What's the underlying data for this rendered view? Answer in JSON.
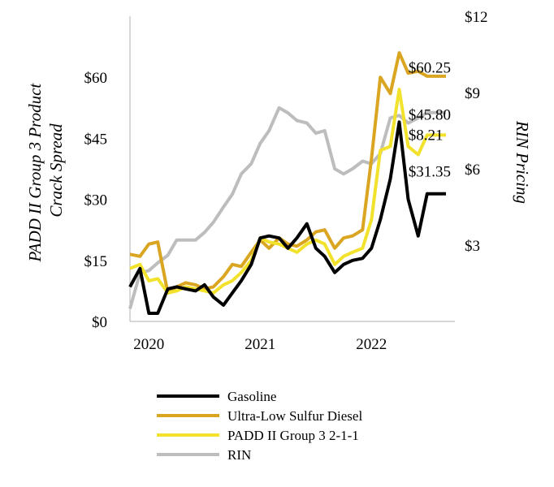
{
  "chart_data": {
    "type": "line",
    "title": "",
    "xlabel": "",
    "ylabel": "PADD II Group 3 Product Crack Spread",
    "y2label": "RIN Pricing",
    "ylim": [
      0,
      75
    ],
    "y2lim": [
      0,
      12
    ],
    "xlim": [
      2019.83,
      2022.75
    ],
    "yticks": [
      0,
      15,
      30,
      45,
      60
    ],
    "ytick_labels": [
      "$0",
      "$15",
      "$30",
      "$45",
      "$60"
    ],
    "y2ticks": [
      3,
      6,
      9,
      12
    ],
    "y2tick_labels": [
      "$3",
      "$6",
      "$9",
      "$12"
    ],
    "xticks": [
      2020,
      2021,
      2022
    ],
    "xtick_labels": [
      "2020",
      "2021",
      "2022"
    ],
    "series": [
      {
        "name": "Gasoline",
        "axis": "left",
        "color": "#000000",
        "x": [
          2019.83,
          2019.92,
          2020.0,
          2020.08,
          2020.17,
          2020.25,
          2020.33,
          2020.42,
          2020.5,
          2020.58,
          2020.67,
          2020.75,
          2020.83,
          2020.92,
          2021.0,
          2021.08,
          2021.17,
          2021.25,
          2021.33,
          2021.42,
          2021.5,
          2021.58,
          2021.67,
          2021.75,
          2021.83,
          2021.92,
          2022.0,
          2022.08,
          2022.17,
          2022.25,
          2022.33,
          2022.42,
          2022.5,
          2022.58,
          2022.67
        ],
        "values": [
          8.5,
          13,
          2,
          2,
          8,
          8.5,
          8,
          7.5,
          9,
          6,
          4,
          7,
          10,
          14,
          20.5,
          21,
          20.5,
          18,
          20.5,
          24,
          18,
          16,
          12,
          14,
          15,
          15.5,
          18,
          25,
          35,
          49,
          30,
          21,
          31.35,
          31.35,
          31.35
        ]
      },
      {
        "name": "Ultra-Low Sulfur Diesel",
        "axis": "left",
        "color": "#DAA520",
        "x": [
          2019.83,
          2019.92,
          2020.0,
          2020.08,
          2020.17,
          2020.25,
          2020.33,
          2020.42,
          2020.5,
          2020.58,
          2020.67,
          2020.75,
          2020.83,
          2020.92,
          2021.0,
          2021.08,
          2021.17,
          2021.25,
          2021.33,
          2021.42,
          2021.5,
          2021.58,
          2021.67,
          2021.75,
          2021.83,
          2021.92,
          2022.0,
          2022.08,
          2022.17,
          2022.25,
          2022.33,
          2022.42,
          2022.5,
          2022.58,
          2022.67
        ],
        "values": [
          16.5,
          16,
          19,
          19.5,
          7,
          8.5,
          9.5,
          9,
          8,
          8.5,
          11,
          14,
          13.5,
          17,
          20,
          18,
          20.5,
          19,
          18.5,
          20,
          22,
          22.5,
          18,
          20.5,
          21,
          22.5,
          40,
          60,
          56,
          66,
          61,
          61.5,
          60.25,
          60.25,
          60.25
        ]
      },
      {
        "name": "PADD II Group 3 2-1-1",
        "axis": "left",
        "color": "#F2E22B",
        "x": [
          2019.83,
          2019.92,
          2020.0,
          2020.08,
          2020.17,
          2020.25,
          2020.33,
          2020.42,
          2020.5,
          2020.58,
          2020.67,
          2020.75,
          2020.83,
          2020.92,
          2021.0,
          2021.08,
          2021.17,
          2021.25,
          2021.33,
          2021.42,
          2021.5,
          2021.58,
          2021.67,
          2021.75,
          2021.83,
          2021.92,
          2022.0,
          2022.08,
          2022.17,
          2022.25,
          2022.33,
          2022.42,
          2022.5,
          2022.58,
          2022.67
        ],
        "values": [
          13,
          14,
          10,
          10.5,
          7,
          7.5,
          8.5,
          8,
          7.5,
          7,
          9,
          10,
          12,
          15,
          20.5,
          19.5,
          19,
          18,
          17,
          19,
          20,
          19,
          14,
          16,
          17,
          18,
          25,
          42,
          43,
          57,
          43,
          41,
          45.8,
          45.8,
          45.8
        ]
      },
      {
        "name": "RIN",
        "axis": "right",
        "color": "#BDBDBD",
        "x": [
          2019.83,
          2019.92,
          2020.0,
          2020.08,
          2020.17,
          2020.25,
          2020.33,
          2020.42,
          2020.5,
          2020.58,
          2020.67,
          2020.75,
          2020.83,
          2020.92,
          2021.0,
          2021.08,
          2021.17,
          2021.25,
          2021.33,
          2021.42,
          2021.5,
          2021.58,
          2021.67,
          2021.75,
          2021.83,
          2021.92,
          2022.0,
          2022.08,
          2022.17,
          2022.25,
          2022.33,
          2022.42,
          2022.5,
          2022.58,
          2022.67
        ],
        "values": [
          0.5,
          1.9,
          2.0,
          2.3,
          2.6,
          3.2,
          3.2,
          3.2,
          3.5,
          3.9,
          4.5,
          5.0,
          5.8,
          6.2,
          7.0,
          7.5,
          8.4,
          8.2,
          7.9,
          7.8,
          7.4,
          7.5,
          6.0,
          5.8,
          6.0,
          6.3,
          6.2,
          6.6,
          8.0,
          8.1,
          7.8,
          8.0,
          8.21,
          8.21,
          8.21
        ]
      }
    ],
    "annotations": [
      {
        "text": "$60.25",
        "x": 2022.58,
        "y": 62.5,
        "axis": "left"
      },
      {
        "text": "$45.80",
        "x": 2022.58,
        "y": 51.0,
        "axis": "left"
      },
      {
        "text": "$8.21",
        "x": 2022.58,
        "y": 46.0,
        "axis": "left"
      },
      {
        "text": "$31.35",
        "x": 2022.58,
        "y": 37.0,
        "axis": "left"
      }
    ],
    "legend_position": "bottom",
    "grid": false
  }
}
